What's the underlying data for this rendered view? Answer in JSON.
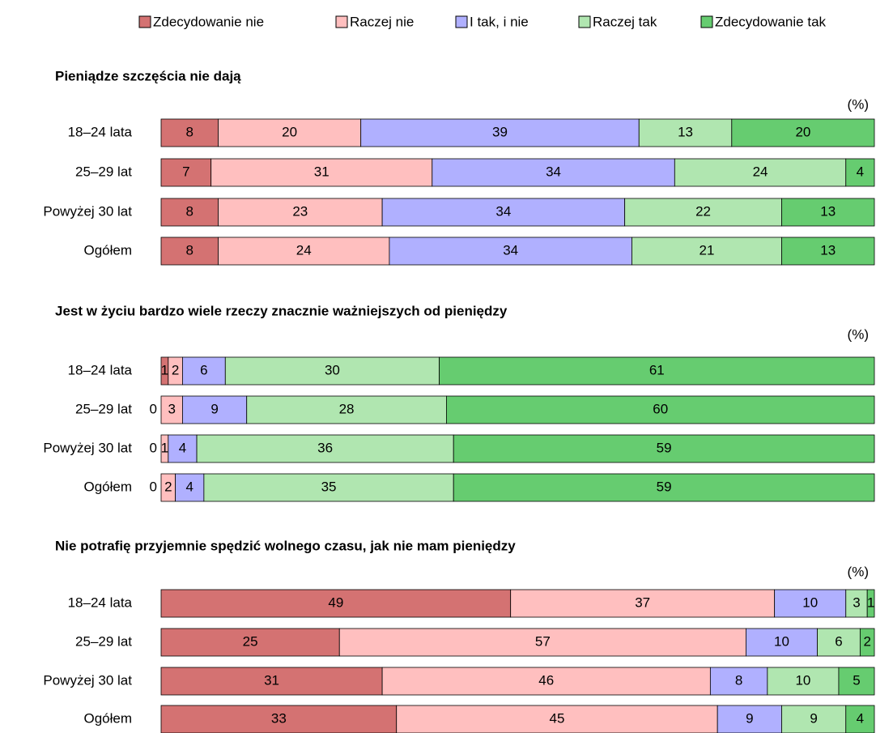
{
  "chart_data": [
    {
      "type": "stacked-bar-horizontal",
      "title": "Pieniądze szczęścia nie dają",
      "unit": "(%)",
      "categories": [
        "18–24 lata",
        "25–29 lat",
        "Powyżej 30 lat",
        "Ogółem"
      ],
      "series": [
        {
          "name": "Zdecydowanie nie",
          "color": "#d47272",
          "values": [
            8,
            7,
            8,
            8
          ]
        },
        {
          "name": "Raczej nie",
          "color": "#ffbfbf",
          "values": [
            20,
            31,
            23,
            24
          ]
        },
        {
          "name": "I tak, i nie",
          "color": "#b0b0ff",
          "values": [
            39,
            34,
            34,
            34
          ]
        },
        {
          "name": "Raczej tak",
          "color": "#b0e6b0",
          "values": [
            13,
            24,
            22,
            21
          ]
        },
        {
          "name": "Zdecydowanie tak",
          "color": "#66cc70",
          "values": [
            20,
            4,
            13,
            13
          ]
        }
      ]
    },
    {
      "type": "stacked-bar-horizontal",
      "title": "Jest w życiu bardzo wiele rzeczy znacznie ważniejszych od pieniędzy",
      "unit": "(%)",
      "categories": [
        "18–24 lata",
        "25–29 lat",
        "Powyżej 30 lat",
        "Ogółem"
      ],
      "series": [
        {
          "values": [
            1,
            0,
            0,
            0
          ]
        },
        {
          "values": [
            2,
            3,
            1,
            2
          ]
        },
        {
          "values": [
            6,
            9,
            4,
            4
          ]
        },
        {
          "values": [
            30,
            28,
            36,
            35
          ]
        },
        {
          "values": [
            61,
            60,
            59,
            59
          ]
        }
      ]
    },
    {
      "type": "stacked-bar-horizontal",
      "title": "Nie potrafię przyjemnie spędzić wolnego czasu, jak nie mam pieniędzy",
      "unit": "(%)",
      "categories": [
        "18–24 lata",
        "25–29 lat",
        "Powyżej 30 lat",
        "Ogółem"
      ],
      "series": [
        {
          "values": [
            49,
            25,
            31,
            33
          ]
        },
        {
          "values": [
            37,
            57,
            46,
            45
          ]
        },
        {
          "values": [
            10,
            10,
            8,
            9
          ]
        },
        {
          "values": [
            3,
            6,
            10,
            9
          ]
        },
        {
          "values": [
            1,
            2,
            5,
            4
          ]
        }
      ]
    }
  ]
}
